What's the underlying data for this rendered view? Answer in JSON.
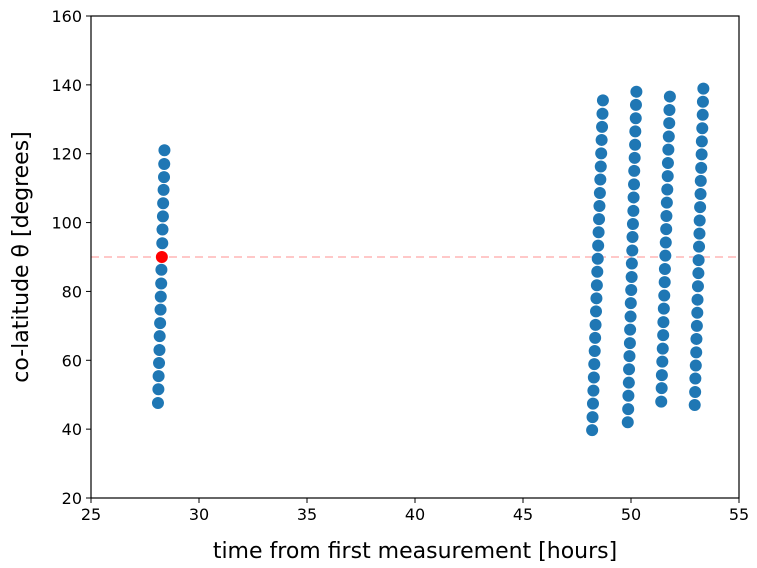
{
  "chart_data": {
    "type": "scatter",
    "xlabel": "time from first measurement [hours]",
    "ylabel": "co-latitude θ [degrees]",
    "xlim": [
      25,
      55
    ],
    "xticks": [
      25,
      30,
      35,
      40,
      45,
      50,
      55
    ],
    "ylim": [
      20,
      160
    ],
    "yticks": [
      20,
      40,
      60,
      80,
      100,
      120,
      140,
      160
    ],
    "hline": {
      "y": 90,
      "color": "#ffc8c8",
      "style": "dashed"
    },
    "series": [
      {
        "color": "#1f77b4",
        "x": [
          28.1,
          28.12,
          28.13,
          28.15,
          28.17,
          28.18,
          28.2,
          28.22,
          28.23,
          28.25,
          28.26,
          28.3,
          28.31,
          28.33,
          28.34,
          28.36,
          28.38,
          28.39,
          28.4,
          48.2,
          48.22,
          48.24,
          48.26,
          48.28,
          48.3,
          48.32,
          48.34,
          48.36,
          48.38,
          48.4,
          48.42,
          48.44,
          48.46,
          48.48,
          48.5,
          48.52,
          48.54,
          48.56,
          48.58,
          48.6,
          48.62,
          48.64,
          48.66,
          48.68,
          48.7,
          49.85,
          49.87,
          49.88,
          49.9,
          49.91,
          49.93,
          49.95,
          49.96,
          49.98,
          49.99,
          50.01,
          50.03,
          50.04,
          50.06,
          50.07,
          50.09,
          50.11,
          50.12,
          50.14,
          50.15,
          50.17,
          50.19,
          50.2,
          50.22,
          50.23,
          50.25,
          51.4,
          51.42,
          51.43,
          51.45,
          51.47,
          51.49,
          51.5,
          51.52,
          51.54,
          51.56,
          51.57,
          51.59,
          51.61,
          51.63,
          51.64,
          51.66,
          51.68,
          51.7,
          51.71,
          51.73,
          51.75,
          51.77,
          51.78,
          51.8,
          52.95,
          52.97,
          52.98,
          53,
          53.02,
          53.03,
          53.05,
          53.07,
          53.08,
          53.1,
          53.12,
          53.13,
          53.15,
          53.17,
          53.18,
          53.2,
          53.22,
          53.23,
          53.25,
          53.27,
          53.28,
          53.3,
          53.32,
          53.33,
          53.35
        ],
        "values": [
          47.6,
          51.6,
          55.4,
          59.2,
          63,
          67,
          70.8,
          74.7,
          78.5,
          82.3,
          86.3,
          94,
          98,
          101.8,
          105.6,
          109.5,
          113.2,
          117,
          121,
          39.7,
          43.5,
          47.4,
          51.2,
          55,
          58.9,
          62.7,
          66.5,
          70.3,
          74.2,
          78,
          81.8,
          85.7,
          89.5,
          93.3,
          97.2,
          101,
          104.8,
          108.6,
          112.5,
          116.3,
          120.1,
          124,
          127.8,
          131.6,
          135.5,
          42,
          45.8,
          49.7,
          53.5,
          57.4,
          61.2,
          65,
          68.9,
          72.7,
          76.6,
          80.4,
          84.2,
          88.1,
          91.9,
          95.8,
          99.6,
          103.4,
          107.3,
          111.1,
          115,
          118.8,
          122.6,
          126.5,
          130.3,
          134.2,
          138,
          48,
          51.9,
          55.7,
          59.6,
          63.4,
          67.3,
          71.1,
          75,
          78.8,
          82.7,
          86.5,
          90.4,
          94.2,
          98.1,
          101.9,
          105.8,
          109.6,
          113.5,
          117.3,
          121.2,
          125,
          128.9,
          132.7,
          136.6,
          47,
          50.8,
          54.7,
          58.5,
          62.3,
          66.2,
          70,
          73.8,
          77.6,
          81.5,
          85.3,
          89.1,
          93,
          96.8,
          100.6,
          104.5,
          108.3,
          112.1,
          115.9,
          119.8,
          123.6,
          127.4,
          131.3,
          135.1,
          138.9
        ]
      },
      {
        "color": "#ff0000",
        "x": [
          28.28
        ],
        "values": [
          90
        ]
      }
    ]
  }
}
